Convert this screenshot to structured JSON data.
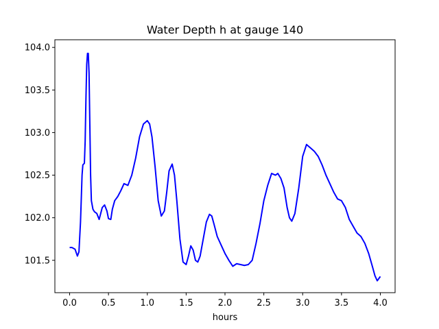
{
  "chart_data": {
    "type": "line",
    "title": "Water Depth h at gauge 140",
    "xlabel": "hours",
    "ylabel": "",
    "xlim": [
      -0.19,
      4.19
    ],
    "ylim": [
      101.12,
      104.09
    ],
    "xticks": [
      0.0,
      0.5,
      1.0,
      1.5,
      2.0,
      2.5,
      3.0,
      3.5,
      4.0
    ],
    "xtick_labels": [
      "0.0",
      "0.5",
      "1.0",
      "1.5",
      "2.0",
      "2.5",
      "3.0",
      "3.5",
      "4.0"
    ],
    "yticks": [
      101.5,
      102.0,
      102.5,
      103.0,
      103.5,
      104.0
    ],
    "ytick_labels": [
      "101.5",
      "102.0",
      "102.5",
      "103.0",
      "103.5",
      "104.0"
    ],
    "grid": false,
    "series": [
      {
        "color": "#0000ff",
        "x": [
          0.0,
          0.03,
          0.07,
          0.1,
          0.12,
          0.14,
          0.16,
          0.17,
          0.18,
          0.19,
          0.2,
          0.21,
          0.22,
          0.23,
          0.24,
          0.25,
          0.26,
          0.27,
          0.28,
          0.3,
          0.32,
          0.35,
          0.38,
          0.42,
          0.45,
          0.48,
          0.5,
          0.53,
          0.55,
          0.58,
          0.62,
          0.66,
          0.7,
          0.75,
          0.8,
          0.85,
          0.9,
          0.95,
          1.0,
          1.03,
          1.06,
          1.1,
          1.14,
          1.18,
          1.22,
          1.25,
          1.28,
          1.32,
          1.35,
          1.38,
          1.42,
          1.46,
          1.5,
          1.53,
          1.56,
          1.59,
          1.62,
          1.65,
          1.68,
          1.72,
          1.76,
          1.8,
          1.83,
          1.86,
          1.9,
          1.95,
          2.0,
          2.05,
          2.1,
          2.15,
          2.2,
          2.25,
          2.3,
          2.35,
          2.4,
          2.45,
          2.5,
          2.55,
          2.6,
          2.65,
          2.68,
          2.72,
          2.76,
          2.8,
          2.83,
          2.86,
          2.9,
          2.95,
          3.0,
          3.05,
          3.1,
          3.15,
          3.2,
          3.25,
          3.3,
          3.35,
          3.4,
          3.45,
          3.5,
          3.55,
          3.6,
          3.65,
          3.7,
          3.75,
          3.8,
          3.85,
          3.9,
          3.93,
          3.96,
          4.0
        ],
        "y": [
          101.65,
          101.65,
          101.63,
          101.55,
          101.6,
          101.95,
          102.5,
          102.62,
          102.63,
          102.64,
          102.9,
          103.4,
          103.8,
          103.93,
          103.93,
          103.7,
          103.1,
          102.5,
          102.2,
          102.1,
          102.07,
          102.05,
          101.98,
          102.12,
          102.15,
          102.08,
          101.99,
          101.98,
          102.1,
          102.2,
          102.25,
          102.32,
          102.4,
          102.38,
          102.5,
          102.7,
          102.95,
          103.1,
          103.14,
          103.1,
          102.95,
          102.6,
          102.2,
          102.02,
          102.08,
          102.3,
          102.55,
          102.63,
          102.5,
          102.2,
          101.75,
          101.48,
          101.45,
          101.55,
          101.67,
          101.62,
          101.5,
          101.48,
          101.55,
          101.75,
          101.95,
          102.04,
          102.02,
          101.92,
          101.78,
          101.68,
          101.58,
          101.5,
          101.43,
          101.46,
          101.45,
          101.44,
          101.45,
          101.5,
          101.7,
          101.93,
          102.2,
          102.38,
          102.52,
          102.5,
          102.52,
          102.46,
          102.35,
          102.12,
          102.0,
          101.96,
          102.05,
          102.35,
          102.72,
          102.86,
          102.82,
          102.78,
          102.72,
          102.62,
          102.5,
          102.4,
          102.3,
          102.22,
          102.2,
          102.12,
          101.98,
          101.9,
          101.82,
          101.78,
          101.7,
          101.58,
          101.42,
          101.32,
          101.26,
          101.31
        ]
      }
    ]
  }
}
